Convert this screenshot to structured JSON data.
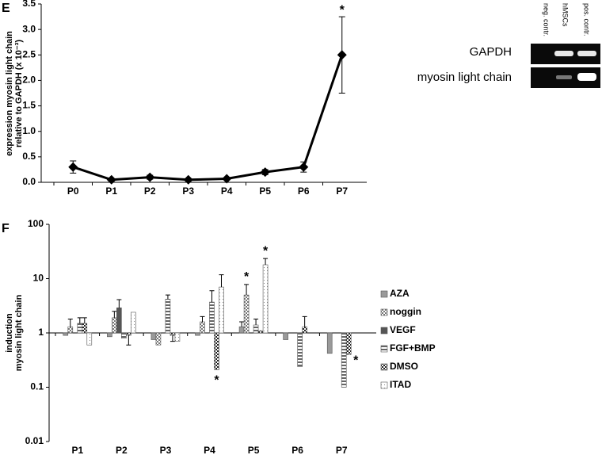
{
  "chart_data": [
    {
      "type": "line",
      "panel": "E",
      "ylabel": [
        "expression myosin light chain",
        "relative to GAPDH (x 10⁻³)"
      ],
      "categories": [
        "P0",
        "P1",
        "P2",
        "P3",
        "P4",
        "P5",
        "P6",
        "P7"
      ],
      "values": [
        0.3,
        0.05,
        0.1,
        0.05,
        0.07,
        0.2,
        0.3,
        2.5
      ],
      "errors": [
        0.12,
        0.02,
        0.04,
        0.02,
        0.02,
        0.05,
        0.1,
        0.75
      ],
      "color": "#000000",
      "ylim": [
        0,
        3.5
      ],
      "yticks": [
        {
          "value": 0,
          "label": "0.0"
        },
        0.5,
        {
          "value": 1,
          "label": "1.0"
        },
        1.5,
        {
          "value": 2,
          "label": "2.0"
        },
        2.5,
        {
          "value": 3,
          "label": "3.0"
        },
        3.5
      ],
      "annotations": [
        {
          "text": "*",
          "category": "P7"
        }
      ]
    },
    {
      "type": "bar",
      "panel": "F",
      "log_scale": true,
      "baseline": 1,
      "ylabel": [
        "induction",
        "myosin light chain"
      ],
      "categories": [
        "P1",
        "P2",
        "P3",
        "P4",
        "P5",
        "P6",
        "P7"
      ],
      "series": [
        {
          "name": "AZA",
          "color": "#9a9a9a",
          "pattern": "solid",
          "values": [
            0.9,
            0.85,
            0.75,
            0.9,
            1.3,
            0.75,
            0.42
          ],
          "errors": [
            null,
            null,
            null,
            null,
            0.3,
            null,
            null
          ]
        },
        {
          "name": "noggin",
          "color": "#777777",
          "pattern": "checker",
          "values": [
            1.3,
            1.9,
            0.6,
            1.6,
            5,
            null,
            null
          ],
          "errors": [
            0.5,
            0.6,
            null,
            0.4,
            2.8,
            null,
            null
          ]
        },
        {
          "name": "VEGF",
          "color": "#555555",
          "pattern": "solid",
          "values": [
            1.0,
            2.9,
            null,
            null,
            null,
            null,
            null
          ],
          "errors": [
            null,
            1.2,
            null,
            null,
            null,
            null,
            null
          ]
        },
        {
          "name": "FGF+BMP",
          "color": "#666666",
          "pattern": "hstripe",
          "values": [
            1.5,
            0.8,
            4.2,
            3.7,
            1.4,
            0.24,
            0.1
          ],
          "errors": [
            0.4,
            null,
            0.8,
            2.3,
            0.4,
            null,
            null
          ]
        },
        {
          "name": "DMSO",
          "color": "#222222",
          "pattern": "checker",
          "values": [
            1.5,
            0.9,
            0.9,
            0.21,
            1.1,
            1.3,
            0.4
          ],
          "errors": [
            0.4,
            0.3,
            0.2,
            null,
            null,
            0.7,
            null
          ]
        },
        {
          "name": "ITAD",
          "color": "#888888",
          "pattern": "dots",
          "values": [
            0.6,
            2.4,
            0.7,
            7,
            18,
            null,
            null
          ],
          "errors": [
            null,
            null,
            null,
            4.8,
            5.5,
            null,
            null
          ]
        }
      ],
      "ylim": [
        0.01,
        100
      ],
      "yticks": [
        0.01,
        0.1,
        1,
        10,
        100
      ],
      "annotations": [
        {
          "text": "*",
          "category": "P4",
          "series": "DMSO"
        },
        {
          "text": "*",
          "category": "P5",
          "series": "noggin"
        },
        {
          "text": "*",
          "category": "P5",
          "series": "ITAD"
        },
        {
          "text": "*",
          "category": "P7",
          "series": "DMSO"
        }
      ]
    }
  ],
  "gel": {
    "lanes": [
      "neg. contr.",
      "hMSCs",
      "pos. contr."
    ],
    "rows": [
      "GAPDH",
      "myosin light chain"
    ]
  }
}
